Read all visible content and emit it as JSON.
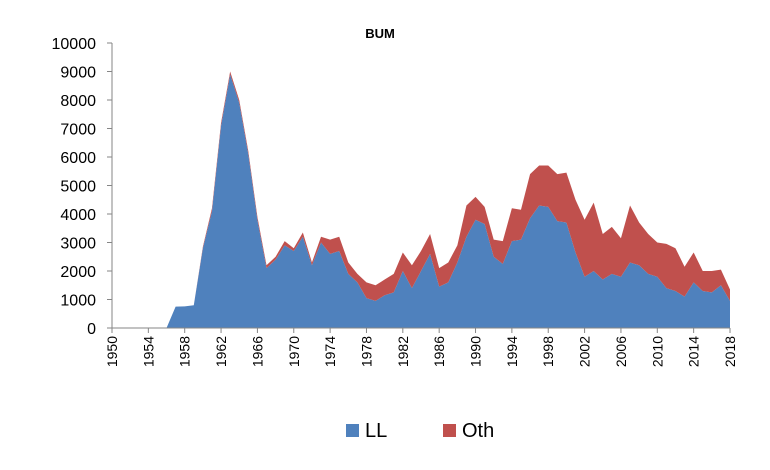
{
  "chart_data": {
    "type": "area",
    "stacked": true,
    "title": "BUM",
    "xlabel": "",
    "ylabel": "",
    "xlim": [
      1950,
      2018
    ],
    "ylim": [
      0,
      10000
    ],
    "yticks": [
      0,
      1000,
      2000,
      3000,
      4000,
      5000,
      6000,
      7000,
      8000,
      9000,
      10000
    ],
    "xticks": [
      1950,
      1954,
      1958,
      1962,
      1966,
      1970,
      1974,
      1978,
      1982,
      1986,
      1990,
      1994,
      1998,
      2002,
      2006,
      2010,
      2014,
      2018
    ],
    "grid": false,
    "legend": "bottom",
    "x": [
      1950,
      1951,
      1952,
      1953,
      1954,
      1955,
      1956,
      1957,
      1958,
      1959,
      1960,
      1961,
      1962,
      1963,
      1964,
      1965,
      1966,
      1967,
      1968,
      1969,
      1970,
      1971,
      1972,
      1973,
      1974,
      1975,
      1976,
      1977,
      1978,
      1979,
      1980,
      1981,
      1982,
      1983,
      1984,
      1985,
      1986,
      1987,
      1988,
      1989,
      1990,
      1991,
      1992,
      1993,
      1994,
      1995,
      1996,
      1997,
      1998,
      1999,
      2000,
      2001,
      2002,
      2003,
      2004,
      2005,
      2006,
      2007,
      2008,
      2009,
      2010,
      2011,
      2012,
      2013,
      2014,
      2015,
      2016,
      2017,
      2018
    ],
    "series": [
      {
        "name": "LL",
        "color": "#4f81bd",
        "values": [
          0,
          0,
          0,
          0,
          0,
          0,
          0,
          750,
          760,
          800,
          2800,
          4100,
          7100,
          8900,
          7900,
          6100,
          3800,
          2100,
          2400,
          2900,
          2700,
          3200,
          2200,
          3000,
          2600,
          2700,
          1900,
          1600,
          1050,
          950,
          1150,
          1250,
          2000,
          1400,
          2000,
          2600,
          1450,
          1600,
          2300,
          3200,
          3800,
          3650,
          2500,
          2250,
          3050,
          3100,
          3850,
          4300,
          4250,
          3750,
          3700,
          2650,
          1800,
          2000,
          1700,
          1900,
          1800,
          2300,
          2200,
          1900,
          1800,
          1400,
          1300,
          1100,
          1600,
          1300,
          1250,
          1500,
          950
        ]
      },
      {
        "name": "Oth",
        "color": "#c0504d",
        "values": [
          0,
          0,
          0,
          0,
          0,
          0,
          0,
          0,
          0,
          0,
          50,
          100,
          100,
          100,
          100,
          100,
          100,
          100,
          100,
          150,
          100,
          150,
          100,
          200,
          500,
          500,
          400,
          300,
          550,
          550,
          550,
          650,
          650,
          800,
          700,
          700,
          650,
          700,
          600,
          1100,
          800,
          600,
          600,
          800,
          1150,
          1050,
          1550,
          1400,
          1450,
          1650,
          1750,
          1850,
          2000,
          2400,
          1600,
          1650,
          1350,
          2000,
          1500,
          1400,
          1200,
          1550,
          1500,
          1050,
          1050,
          700,
          750,
          550,
          400
        ]
      }
    ]
  }
}
